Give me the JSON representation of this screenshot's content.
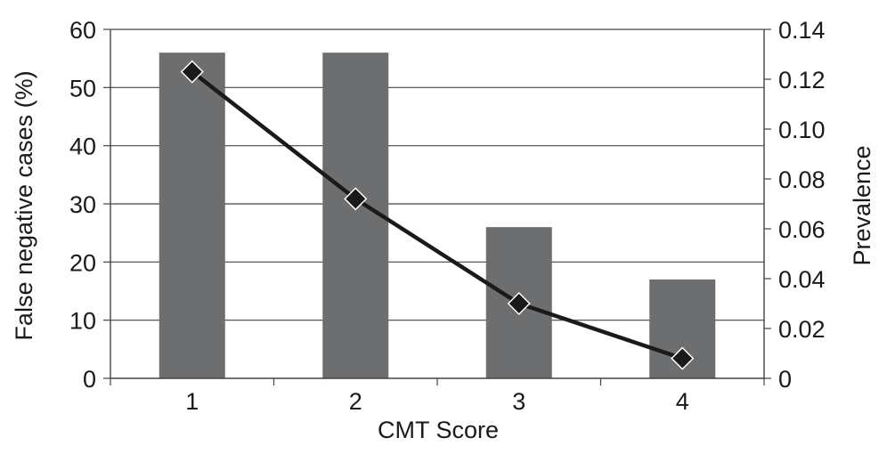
{
  "chart_data": {
    "type": "bar",
    "categories": [
      "1",
      "2",
      "3",
      "4"
    ],
    "xlabel": "CMT Score",
    "ylabel": "False negative cases (%)",
    "y2label": "Prevalence",
    "ylim": [
      0,
      60
    ],
    "y2lim": [
      0,
      0.14
    ],
    "yticks": [
      "0",
      "10",
      "20",
      "30",
      "40",
      "50",
      "60"
    ],
    "y2ticks": [
      "0",
      "0.02",
      "0.04",
      "0.06",
      "0.08",
      "0.10",
      "0.12",
      "0.14"
    ],
    "grid": true,
    "legend": "none",
    "series": [
      {
        "kind": "bar",
        "axis": "left",
        "values": [
          56,
          56,
          26,
          17
        ],
        "color": "#6d6e70"
      },
      {
        "kind": "line",
        "axis": "right",
        "marker": "diamond",
        "values": [
          0.123,
          0.072,
          0.03,
          0.008
        ],
        "color": "#1a1a1a"
      }
    ]
  }
}
